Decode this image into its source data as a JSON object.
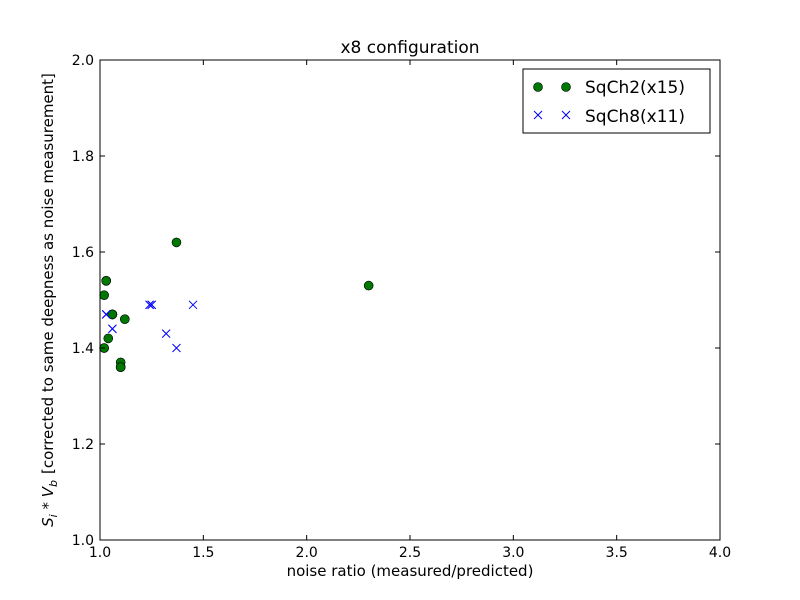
{
  "chart_data": {
    "type": "scatter",
    "title": "x8 configuration",
    "xlabel": "noise ratio (measured/predicted)",
    "ylabel": "[corrected to same deepness as noise measurement]",
    "ylabel_math": {
      "base1": "S",
      "sub1": "i",
      "op": " * ",
      "base2": "V",
      "sub2": "b"
    },
    "xlim": [
      1.0,
      4.0
    ],
    "ylim": [
      1.0,
      2.0
    ],
    "xticks": [
      "1.0",
      "1.5",
      "2.0",
      "2.5",
      "3.0",
      "3.5",
      "4.0"
    ],
    "xtick_values": [
      1.0,
      1.5,
      2.0,
      2.5,
      3.0,
      3.5,
      4.0
    ],
    "yticks": [
      "1.0",
      "1.2",
      "1.4",
      "1.6",
      "1.8",
      "2.0"
    ],
    "ytick_values": [
      1.0,
      1.2,
      1.4,
      1.6,
      1.8,
      2.0
    ],
    "grid": false,
    "legend_position": "top-right",
    "series": [
      {
        "name": "SqCh2(x15)",
        "marker": "circle",
        "color": "#007700",
        "points": [
          [
            1.02,
            1.51
          ],
          [
            1.03,
            1.54
          ],
          [
            1.06,
            1.47
          ],
          [
            1.06,
            1.47
          ],
          [
            1.04,
            1.42
          ],
          [
            1.02,
            1.4
          ],
          [
            1.02,
            1.4
          ],
          [
            1.1,
            1.37
          ],
          [
            1.1,
            1.36
          ],
          [
            1.12,
            1.46
          ],
          [
            1.37,
            1.62
          ],
          [
            2.3,
            1.53
          ],
          [
            1.1,
            1.36
          ],
          [
            1.06,
            1.47
          ],
          [
            1.03,
            1.54
          ]
        ]
      },
      {
        "name": "SqCh8(x11)",
        "marker": "x",
        "color": "#0000ff",
        "points": [
          [
            1.03,
            1.47
          ],
          [
            1.06,
            1.44
          ],
          [
            1.24,
            1.49
          ],
          [
            1.25,
            1.49
          ],
          [
            1.32,
            1.43
          ],
          [
            1.37,
            1.4
          ],
          [
            1.45,
            1.49
          ],
          [
            1.24,
            1.49
          ],
          [
            1.06,
            1.44
          ],
          [
            1.03,
            1.47
          ],
          [
            1.25,
            1.49
          ]
        ]
      }
    ]
  }
}
